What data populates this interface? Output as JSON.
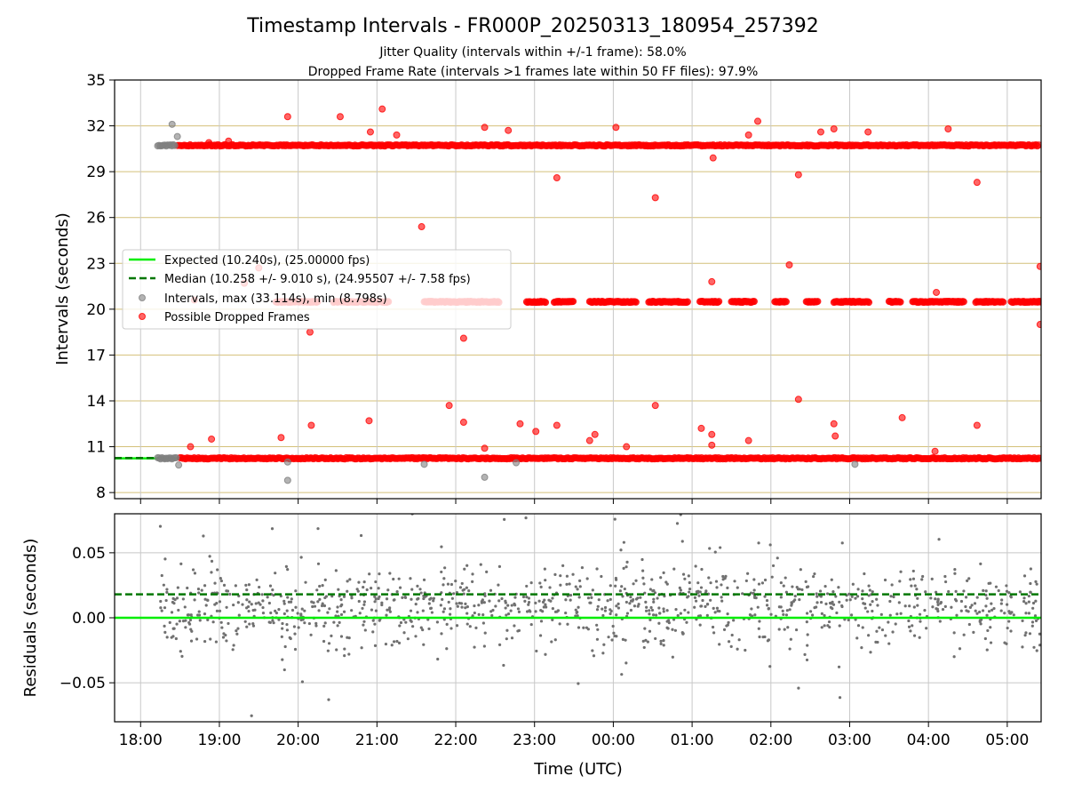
{
  "figure": {
    "title": "Timestamp Intervals - FR000P_20250313_180954_257392",
    "subtitle_1": "Jitter Quality (intervals within +/-1 frame): 58.0%",
    "subtitle_2": "Dropped Frame Rate (intervals >1 frames late within 50 FF files): 97.9%",
    "xlabel": "Time (UTC)"
  },
  "colors": {
    "expected": "#00ee00",
    "median": "#007700",
    "intervals": "#808080",
    "dropped": "#ff0000",
    "h_grid": "#d4c07a",
    "v_grid": "#c8c8c8",
    "residual_dots": "#707070"
  },
  "chart_data": [
    {
      "type": "scatter",
      "name": "intervals-panel",
      "ylabel": "Intervals (seconds)",
      "ylim": [
        7.6,
        35
      ],
      "yticks": [
        8,
        11,
        14,
        17,
        20,
        23,
        26,
        29,
        32,
        35
      ],
      "x_range_hours": [
        17.67,
        29.43
      ],
      "xticks": [
        "18:00",
        "19:00",
        "20:00",
        "21:00",
        "22:00",
        "23:00",
        "00:00",
        "01:00",
        "02:00",
        "03:00",
        "04:00",
        "05:00"
      ],
      "grid": "on",
      "legend_placement": "center-left",
      "legend": [
        "Expected (10.240s), (25.00000 fps)",
        "Median (10.258 +/- 9.010 s), (24.95507 +/- 7.58 fps)",
        "Intervals, max (33.114s), min (8.798s)",
        "Possible Dropped Frames"
      ],
      "expected_interval": 10.24,
      "median_interval": 10.258,
      "bands": [
        {
          "name": "Possible Dropped Frames",
          "y": 10.24,
          "x_start": "18:30",
          "x_end": "05:25",
          "dense": "continuous"
        },
        {
          "name": "Possible Dropped Frames",
          "y": 20.48,
          "x_start": "19:45",
          "x_end": "05:25",
          "dense": "clustered"
        },
        {
          "name": "Possible Dropped Frames",
          "y": 30.72,
          "x_start": "18:28",
          "x_end": "05:25",
          "dense": "continuous"
        },
        {
          "name": "Intervals, max (33.114s), min (8.798s)",
          "y": 10.24,
          "x_start": "18:13",
          "x_end": "18:28"
        },
        {
          "name": "Intervals, max (33.114s), min (8.798s)",
          "y": 30.72,
          "x_start": "18:13",
          "x_end": "18:27"
        }
      ],
      "outliers_grey": [
        {
          "x": "18:24",
          "y": 32.1
        },
        {
          "x": "18:28",
          "y": 31.3
        },
        {
          "x": "18:29",
          "y": 9.8
        },
        {
          "x": "19:52",
          "y": 8.8
        },
        {
          "x": "19:52",
          "y": 10.0
        },
        {
          "x": "21:36",
          "y": 9.85
        },
        {
          "x": "22:22",
          "y": 9.0
        },
        {
          "x": "22:46",
          "y": 9.95
        },
        {
          "x": "03:04",
          "y": 9.85
        }
      ],
      "outliers_red": [
        {
          "x": "18:38",
          "y": 11.0
        },
        {
          "x": "18:41",
          "y": 20.6
        },
        {
          "x": "18:54",
          "y": 11.5
        },
        {
          "x": "18:52",
          "y": 30.9
        },
        {
          "x": "19:07",
          "y": 31.0
        },
        {
          "x": "19:19",
          "y": 21.7
        },
        {
          "x": "19:30",
          "y": 22.7
        },
        {
          "x": "19:47",
          "y": 11.6
        },
        {
          "x": "19:52",
          "y": 32.6
        },
        {
          "x": "20:09",
          "y": 18.5
        },
        {
          "x": "20:10",
          "y": 12.4
        },
        {
          "x": "20:32",
          "y": 32.6
        },
        {
          "x": "20:54",
          "y": 12.7
        },
        {
          "x": "20:55",
          "y": 31.6
        },
        {
          "x": "21:04",
          "y": 33.1
        },
        {
          "x": "21:15",
          "y": 31.4
        },
        {
          "x": "21:34",
          "y": 25.4
        },
        {
          "x": "21:55",
          "y": 13.7
        },
        {
          "x": "22:06",
          "y": 18.1
        },
        {
          "x": "22:06",
          "y": 12.6
        },
        {
          "x": "22:22",
          "y": 31.9
        },
        {
          "x": "22:22",
          "y": 10.9
        },
        {
          "x": "22:40",
          "y": 31.7
        },
        {
          "x": "22:49",
          "y": 12.5
        },
        {
          "x": "23:01",
          "y": 12.0
        },
        {
          "x": "23:17",
          "y": 12.4
        },
        {
          "x": "23:17",
          "y": 28.6
        },
        {
          "x": "23:42",
          "y": 11.4
        },
        {
          "x": "23:46",
          "y": 11.8
        },
        {
          "x": "00:02",
          "y": 31.9
        },
        {
          "x": "00:10",
          "y": 11.0
        },
        {
          "x": "00:32",
          "y": 27.3
        },
        {
          "x": "00:32",
          "y": 13.7
        },
        {
          "x": "01:07",
          "y": 12.2
        },
        {
          "x": "01:15",
          "y": 11.8
        },
        {
          "x": "01:15",
          "y": 11.1
        },
        {
          "x": "01:15",
          "y": 21.8
        },
        {
          "x": "01:16",
          "y": 29.9
        },
        {
          "x": "01:43",
          "y": 31.4
        },
        {
          "x": "01:43",
          "y": 11.4
        },
        {
          "x": "01:50",
          "y": 32.3
        },
        {
          "x": "02:14",
          "y": 22.9
        },
        {
          "x": "02:21",
          "y": 28.8
        },
        {
          "x": "02:21",
          "y": 14.1
        },
        {
          "x": "02:38",
          "y": 31.6
        },
        {
          "x": "02:48",
          "y": 31.8
        },
        {
          "x": "02:48",
          "y": 12.5
        },
        {
          "x": "02:49",
          "y": 11.7
        },
        {
          "x": "03:14",
          "y": 31.6
        },
        {
          "x": "03:40",
          "y": 12.9
        },
        {
          "x": "04:06",
          "y": 21.1
        },
        {
          "x": "04:05",
          "y": 10.7
        },
        {
          "x": "04:15",
          "y": 31.8
        },
        {
          "x": "04:37",
          "y": 28.3
        },
        {
          "x": "04:37",
          "y": 12.4
        },
        {
          "x": "05:25",
          "y": 22.8
        },
        {
          "x": "05:25",
          "y": 19.0
        }
      ]
    },
    {
      "type": "scatter",
      "name": "residuals-panel",
      "ylabel": "Residuals (seconds)",
      "ylim": [
        -0.08,
        0.08
      ],
      "yticks": [
        0.05,
        0.0,
        -0.05
      ],
      "ytick_labels": [
        "0.05",
        "0.00",
        "−0.05"
      ],
      "x_range_hours": [
        17.67,
        29.43
      ],
      "xticks": [
        "18:00",
        "19:00",
        "20:00",
        "21:00",
        "22:00",
        "23:00",
        "00:00",
        "01:00",
        "02:00",
        "03:00",
        "04:00",
        "05:00"
      ],
      "grid": "on",
      "expected_line": 0.0,
      "median_line": 0.018,
      "residual_spread": {
        "x_start": "18:15",
        "x_end": "05:25",
        "center": 0.008,
        "std": 0.016
      }
    }
  ]
}
